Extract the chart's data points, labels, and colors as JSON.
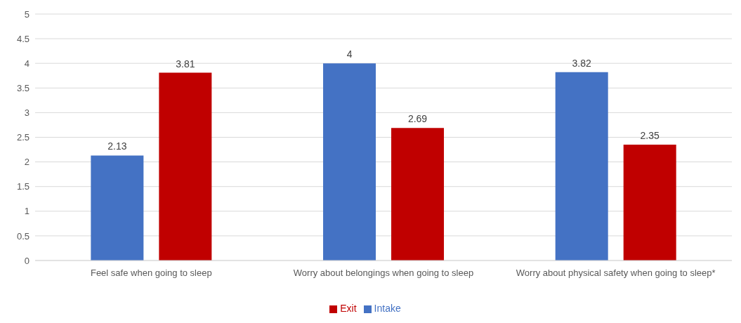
{
  "chart_data": {
    "type": "bar",
    "categories": [
      "Feel safe when going to sleep",
      "Worry about belongings when going to sleep",
      "Worry about physical safety when going to sleep*"
    ],
    "series": [
      {
        "name": "Intake",
        "color": "#4472c4",
        "values": [
          2.13,
          4,
          3.82
        ]
      },
      {
        "name": "Exit",
        "color": "#c00000",
        "values": [
          3.81,
          2.69,
          2.35
        ]
      }
    ],
    "ylim": [
      0,
      5
    ],
    "yticks": [
      0,
      0.5,
      1,
      1.5,
      2,
      2.5,
      3,
      3.5,
      4,
      4.5,
      5
    ],
    "grid": "y",
    "legend": "bottom",
    "data_labels": true
  }
}
